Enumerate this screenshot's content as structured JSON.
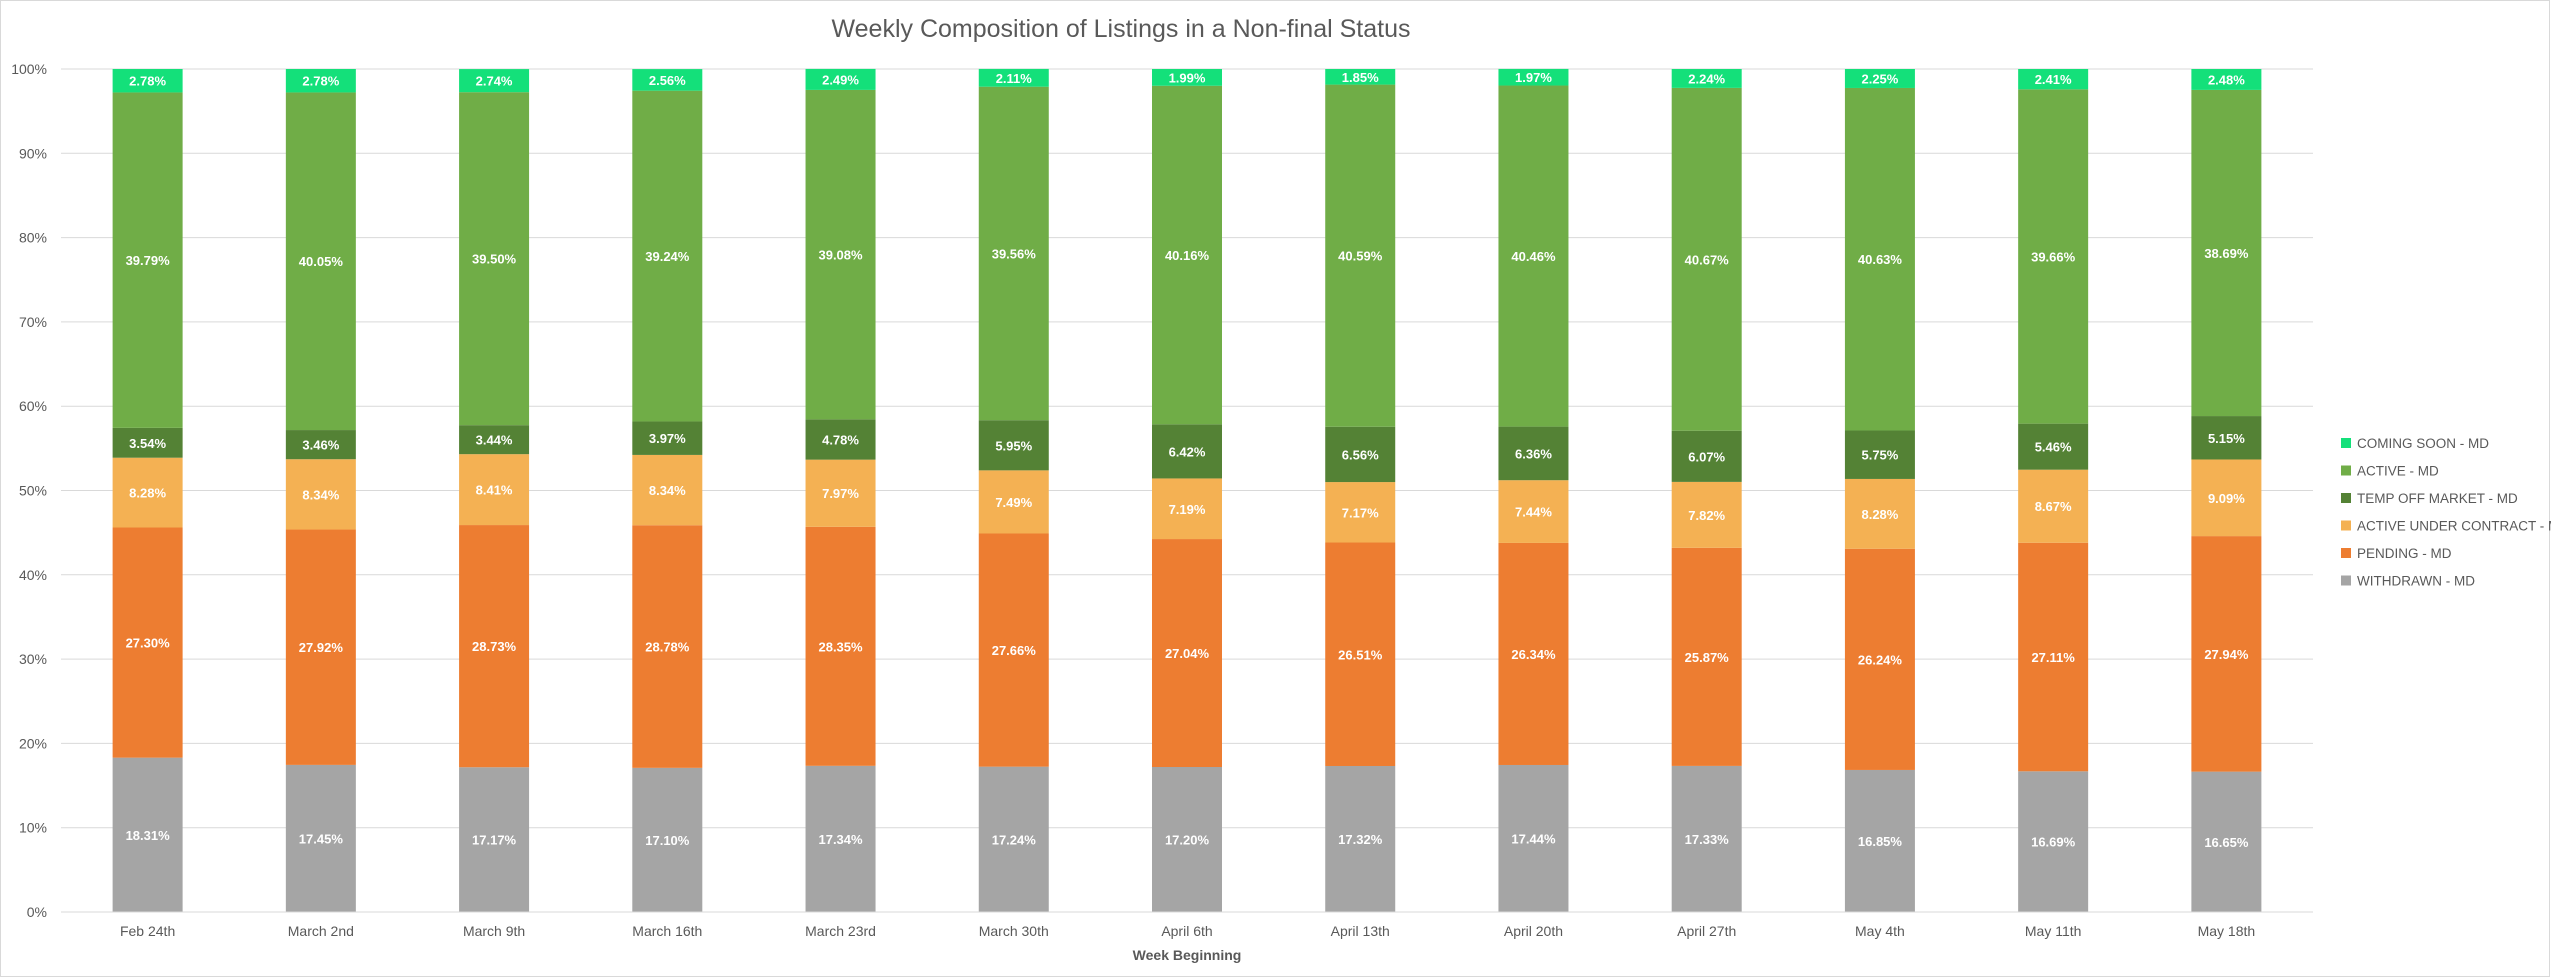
{
  "chart_data": {
    "type": "bar",
    "stacked": true,
    "title": "Weekly Composition of Listings in a Non-final Status",
    "xlabel": "Week Beginning",
    "ylabel": "",
    "ylim": [
      0,
      100
    ],
    "yticks": [
      "0%",
      "10%",
      "20%",
      "30%",
      "40%",
      "50%",
      "60%",
      "70%",
      "80%",
      "90%",
      "100%"
    ],
    "grid": true,
    "legend_position": "right",
    "categories": [
      "Feb 24th",
      "March 2nd",
      "March 9th",
      "March 16th",
      "March 23rd",
      "March 30th",
      "April 6th",
      "April 13th",
      "April 20th",
      "April 27th",
      "May 4th",
      "May 11th",
      "May 18th"
    ],
    "series": [
      {
        "name": "WITHDRAWN - MD",
        "color": "#a5a5a5",
        "values": [
          18.31,
          17.45,
          17.17,
          17.1,
          17.34,
          17.24,
          17.2,
          17.32,
          17.44,
          17.33,
          16.85,
          16.69,
          16.65
        ],
        "labels": [
          "18.31%",
          "17.45%",
          "17.17%",
          "17.10%",
          "17.34%",
          "17.24%",
          "17.20%",
          "17.32%",
          "17.44%",
          "17.33%",
          "16.85%",
          "16.69%",
          "16.65%"
        ]
      },
      {
        "name": "PENDING - MD",
        "color": "#ed7d31",
        "values": [
          27.3,
          27.92,
          28.73,
          28.78,
          28.35,
          27.66,
          27.04,
          26.51,
          26.34,
          25.87,
          26.24,
          27.11,
          27.94
        ],
        "labels": [
          "27.30%",
          "27.92%",
          "28.73%",
          "28.78%",
          "28.35%",
          "27.66%",
          "27.04%",
          "26.51%",
          "26.34%",
          "25.87%",
          "26.24%",
          "27.11%",
          "27.94%"
        ]
      },
      {
        "name": "ACTIVE UNDER CONTRACT - MD",
        "color": "#f4b153",
        "values": [
          8.28,
          8.34,
          8.41,
          8.34,
          7.97,
          7.49,
          7.19,
          7.17,
          7.44,
          7.82,
          8.28,
          8.67,
          9.09
        ],
        "labels": [
          "8.28%",
          "8.34%",
          "8.41%",
          "8.34%",
          "7.97%",
          "7.49%",
          "7.19%",
          "7.17%",
          "7.44%",
          "7.82%",
          "8.28%",
          "8.67%",
          "9.09%"
        ]
      },
      {
        "name": "TEMP OFF MARKET - MD",
        "color": "#548235",
        "values": [
          3.54,
          3.46,
          3.44,
          3.97,
          4.78,
          5.95,
          6.42,
          6.56,
          6.36,
          6.07,
          5.75,
          5.46,
          5.15
        ],
        "labels": [
          "3.54%",
          "3.46%",
          "3.44%",
          "3.97%",
          "4.78%",
          "5.95%",
          "6.42%",
          "6.56%",
          "6.36%",
          "6.07%",
          "5.75%",
          "5.46%",
          "5.15%"
        ]
      },
      {
        "name": "ACTIVE - MD",
        "color": "#70ad47",
        "values": [
          39.79,
          40.05,
          39.5,
          39.24,
          39.08,
          39.56,
          40.16,
          40.59,
          40.46,
          40.67,
          40.63,
          39.66,
          38.69
        ],
        "labels": [
          "39.79%",
          "40.05%",
          "39.50%",
          "39.24%",
          "39.08%",
          "39.56%",
          "40.16%",
          "40.59%",
          "40.46%",
          "40.67%",
          "40.63%",
          "39.66%",
          "38.69%"
        ]
      },
      {
        "name": "COMING SOON - MD",
        "color": "#14e07a",
        "values": [
          2.78,
          2.78,
          2.74,
          2.56,
          2.49,
          2.11,
          1.99,
          1.85,
          1.97,
          2.24,
          2.25,
          2.41,
          2.48
        ],
        "labels": [
          "2.78%",
          "2.78%",
          "2.74%",
          "2.56%",
          "2.49%",
          "2.11%",
          "1.99%",
          "1.85%",
          "1.97%",
          "2.24%",
          "2.25%",
          "2.41%",
          "2.48%"
        ]
      }
    ],
    "legend_order": [
      "COMING SOON - MD",
      "ACTIVE - MD",
      "TEMP OFF MARKET - MD",
      "ACTIVE UNDER CONTRACT - MD",
      "PENDING - MD",
      "WITHDRAWN - MD"
    ]
  }
}
